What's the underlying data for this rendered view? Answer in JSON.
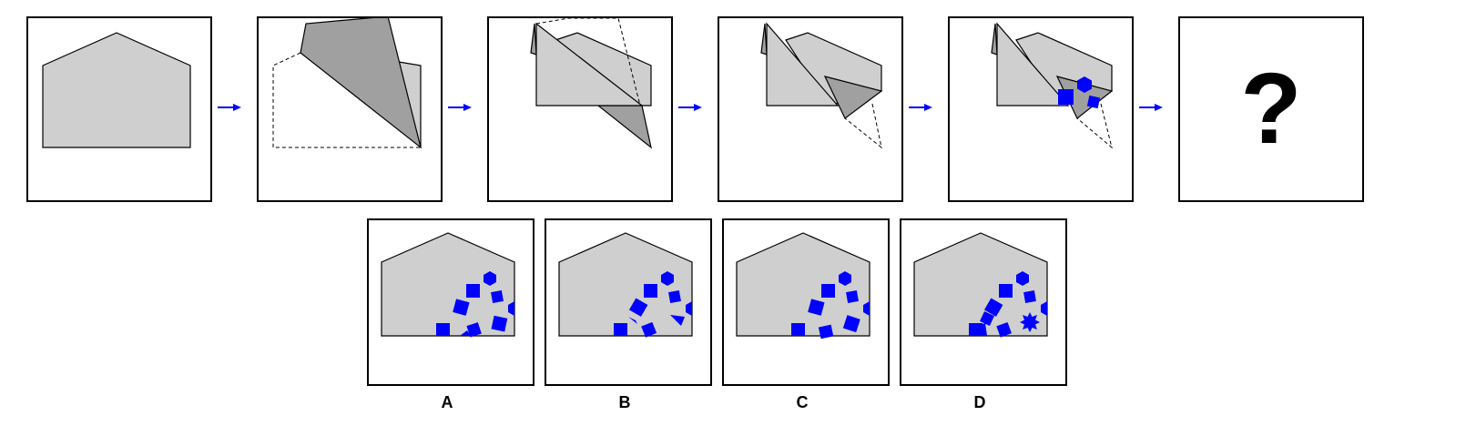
{
  "sequence": {
    "question_mark": "?"
  },
  "options": [
    {
      "label": "A"
    },
    {
      "label": "B"
    },
    {
      "label": "C"
    },
    {
      "label": "D"
    }
  ],
  "colors": {
    "paper": "#cfcfcf",
    "paper_folded": "#a0a0a0",
    "hole": "#0000ff",
    "arrow": "#0000ff",
    "outline": "#000000"
  }
}
